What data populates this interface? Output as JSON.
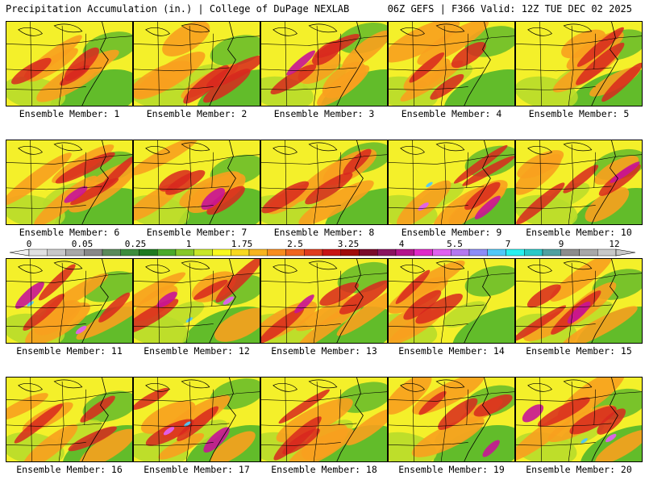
{
  "header": {
    "title": "Precipitation Accumulation (in.) | College of DuPage NEXLAB",
    "run_info": "06Z GEFS | F366 Valid: 12Z TUE DEC 02 2025"
  },
  "panels": [
    {
      "label": "Ensemble Member: 1",
      "member": 1
    },
    {
      "label": "Ensemble Member: 2",
      "member": 2
    },
    {
      "label": "Ensemble Member: 3",
      "member": 3
    },
    {
      "label": "Ensemble Member: 4",
      "member": 4
    },
    {
      "label": "Ensemble Member: 5",
      "member": 5
    },
    {
      "label": "Ensemble Member: 6",
      "member": 6
    },
    {
      "label": "Ensemble Member: 7",
      "member": 7
    },
    {
      "label": "Ensemble Member: 8",
      "member": 8
    },
    {
      "label": "Ensemble Member: 9",
      "member": 9
    },
    {
      "label": "Ensemble Member: 10",
      "member": 10
    },
    {
      "label": "Ensemble Member: 11",
      "member": 11
    },
    {
      "label": "Ensemble Member: 12",
      "member": 12
    },
    {
      "label": "Ensemble Member: 13",
      "member": 13
    },
    {
      "label": "Ensemble Member: 14",
      "member": 14
    },
    {
      "label": "Ensemble Member: 15",
      "member": 15
    },
    {
      "label": "Ensemble Member: 16",
      "member": 16
    },
    {
      "label": "Ensemble Member: 17",
      "member": 17
    },
    {
      "label": "Ensemble Member: 18",
      "member": 18
    },
    {
      "label": "Ensemble Member: 19",
      "member": 19
    },
    {
      "label": "Ensemble Member: 20",
      "member": 20
    }
  ],
  "colorbar": {
    "tick_labels": [
      "0",
      "0.05",
      "0.25",
      "1",
      "1.75",
      "2.5",
      "3.25",
      "4",
      "5.5",
      "7",
      "9",
      "12"
    ],
    "colors": [
      "#e0e0e0",
      "#c8c8c8",
      "#a8a8a8",
      "#888888",
      "#5a8a5a",
      "#3c8c3c",
      "#1f7a1f",
      "#4aaa2a",
      "#86c828",
      "#c8e628",
      "#f8f81e",
      "#f8d81e",
      "#f8b41e",
      "#f88c1e",
      "#f0641e",
      "#e03c1e",
      "#c81414",
      "#a00a0a",
      "#7a0a2a",
      "#8a1460",
      "#b4148c",
      "#e028c8",
      "#e060f0",
      "#b478f0",
      "#8c8cf8",
      "#50c8f8",
      "#28f0f0",
      "#28c8c8",
      "#50a0a0",
      "#8c8c8c",
      "#a8a8a8",
      "#c8c8c8"
    ]
  },
  "palette": {
    "green_dark": "#2f8a2f",
    "green": "#5ab82a",
    "yellow_green": "#b8dc2a",
    "yellow": "#f4f02a",
    "orange": "#f8a01e",
    "orange_dark": "#f0641e",
    "red": "#d8281e",
    "red_dark": "#a00a14",
    "magenta": "#c81496",
    "violet": "#e060f0",
    "cyan": "#50c8f8"
  }
}
